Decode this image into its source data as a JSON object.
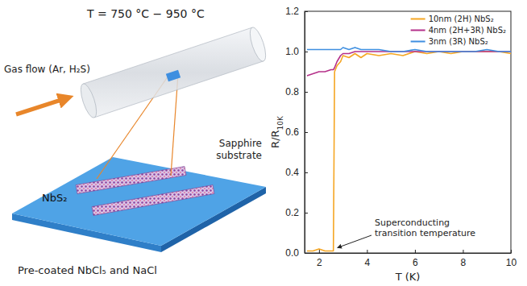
{
  "diagram": {
    "temperature": "T = 750 °C − 950 °C",
    "gas_flow": "Gas flow (Ar, H₂S)",
    "substrate": "Sapphire substrate",
    "material": "NbS₂",
    "precursor": "Pre-coated NbCl₅ and NaCl"
  },
  "chart_data": {
    "type": "line",
    "xlabel": "T (K)",
    "ylabel": "R/R10K",
    "x": [
      1.5,
      1.75,
      2,
      2.25,
      2.5,
      2.6,
      2.65,
      2.75,
      2.9,
      3,
      3.25,
      3.5,
      3.75,
      4,
      4.5,
      5,
      5.5,
      6,
      6.5,
      7,
      7.5,
      8,
      8.5,
      9,
      9.5,
      10
    ],
    "series": [
      {
        "name": "10nm (2H) NbS₂",
        "color": "#f5a623",
        "values": [
          0.01,
          0.01,
          0.02,
          0.01,
          0.01,
          0.01,
          0.9,
          0.93,
          0.95,
          0.98,
          0.97,
          0.99,
          0.97,
          0.99,
          0.98,
          0.99,
          0.98,
          1.0,
          0.99,
          1.0,
          0.99,
          1.0,
          1.0,
          1.0,
          1.0,
          0.99
        ]
      },
      {
        "name": "4nm (2H+3R) NbS₂",
        "color": "#b5318a",
        "values": [
          0.88,
          0.89,
          0.9,
          0.9,
          0.91,
          0.91,
          0.92,
          0.95,
          0.98,
          0.99,
          0.99,
          1.0,
          1.0,
          1.0,
          1.0,
          1.0,
          1.0,
          1.0,
          1.0,
          1.0,
          1.0,
          1.0,
          1.0,
          1.0,
          1.0,
          1.0
        ]
      },
      {
        "name": "3nm (3R) NbS₂",
        "color": "#3f8fe0",
        "values": [
          1.01,
          1.01,
          1.01,
          1.01,
          1.01,
          1.01,
          1.01,
          1.01,
          1.01,
          1.02,
          1.01,
          1.02,
          1.01,
          1.01,
          1.01,
          1.0,
          1.0,
          1.01,
          1.0,
          1.0,
          1.0,
          1.0,
          1.0,
          1.01,
          1.0,
          1.0
        ]
      }
    ],
    "xlim": [
      1.4,
      10
    ],
    "xticks": [
      2,
      4,
      6,
      8,
      10
    ],
    "ylim": [
      0,
      1.2
    ],
    "yticks": [
      {
        "value": 0,
        "label": "0.0"
      },
      0.2,
      0.4,
      0.6,
      0.8,
      {
        "value": 1,
        "label": "1.0"
      },
      1.2
    ],
    "legend": "upper right",
    "annotation": "Superconducting transition temperature"
  }
}
